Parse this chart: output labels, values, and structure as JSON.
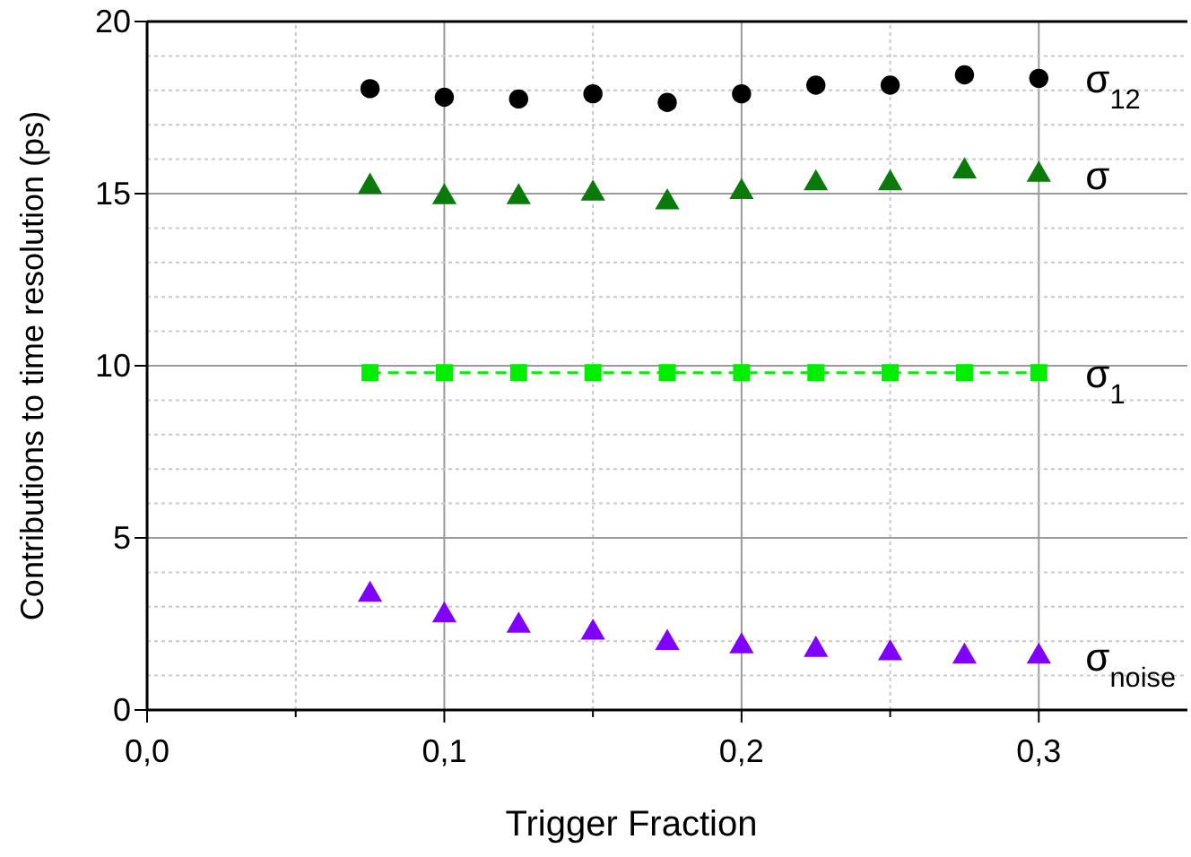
{
  "chart_data": {
    "type": "scatter",
    "xlabel": "Trigger Fraction",
    "ylabel": "Contributions to time resolution (ps)",
    "x": [
      0.075,
      0.1,
      0.125,
      0.15,
      0.175,
      0.2,
      0.225,
      0.25,
      0.275,
      0.3
    ],
    "xlim": [
      0,
      0.35
    ],
    "ylim": [
      0,
      20
    ],
    "xticks": [
      {
        "value": 0,
        "label": "0,0"
      },
      {
        "value": 0.05,
        "label": null
      },
      {
        "value": 0.1,
        "label": "0,1"
      },
      {
        "value": 0.15,
        "label": null
      },
      {
        "value": 0.2,
        "label": "0,2"
      },
      {
        "value": 0.25,
        "label": null
      },
      {
        "value": 0.3,
        "label": "0,3"
      }
    ],
    "yticks": [
      0,
      {
        "value": 1,
        "label": null
      },
      {
        "value": 2,
        "label": null
      },
      {
        "value": 3,
        "label": null
      },
      {
        "value": 4,
        "label": null
      },
      5,
      {
        "value": 6,
        "label": null
      },
      {
        "value": 7,
        "label": null
      },
      {
        "value": 8,
        "label": null
      },
      {
        "value": 9,
        "label": null
      },
      10,
      {
        "value": 11,
        "label": null
      },
      {
        "value": 12,
        "label": null
      },
      {
        "value": 13,
        "label": null
      },
      {
        "value": 14,
        "label": null
      },
      15,
      {
        "value": 16,
        "label": null
      },
      {
        "value": 17,
        "label": null
      },
      {
        "value": 18,
        "label": null
      },
      {
        "value": 19,
        "label": null
      },
      20
    ],
    "grid": true,
    "series": [
      {
        "name": "σ$_{12}$",
        "color": "#000000",
        "marker": "circle",
        "values": [
          18.05,
          17.8,
          17.75,
          17.9,
          17.65,
          17.9,
          18.15,
          18.15,
          18.45,
          18.35
        ]
      },
      {
        "name": "σ",
        "color": "#0a7a0a",
        "marker": "triangle",
        "values": [
          15.2,
          14.9,
          14.9,
          15.0,
          14.75,
          15.05,
          15.3,
          15.3,
          15.65,
          15.55
        ]
      },
      {
        "name": "σ$_{1}$",
        "color": "#00ee00",
        "type": "line",
        "marker": "square",
        "line_style": "dashed",
        "values": [
          9.8,
          9.8,
          9.8,
          9.8,
          9.8,
          9.8,
          9.8,
          9.8,
          9.8,
          9.8
        ]
      },
      {
        "name": "σ$_{noise}$",
        "color": "#8000ff",
        "marker": "triangle",
        "values": [
          3.35,
          2.75,
          2.45,
          2.25,
          1.95,
          1.85,
          1.75,
          1.65,
          1.55,
          1.55
        ]
      }
    ]
  }
}
